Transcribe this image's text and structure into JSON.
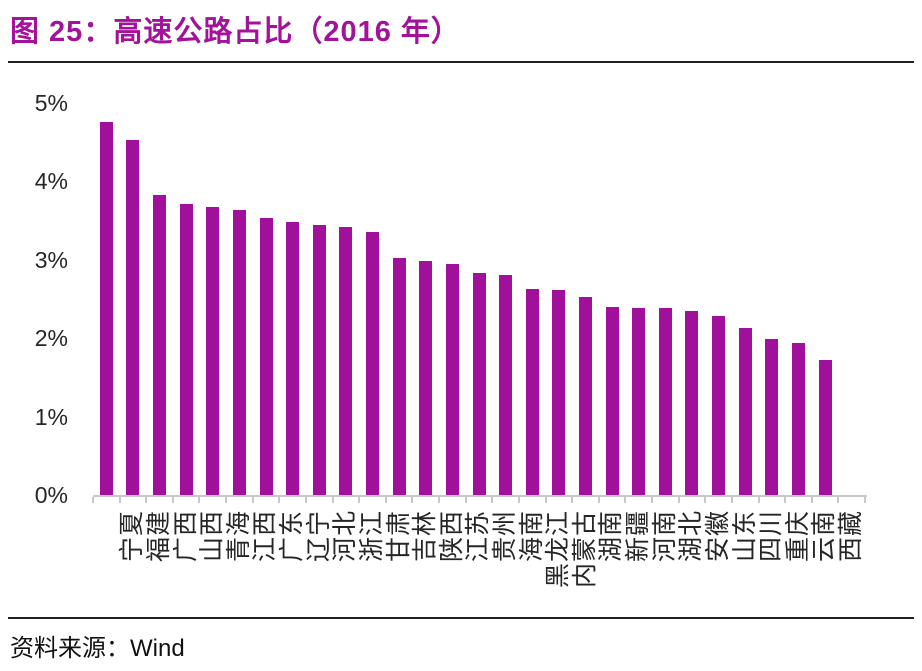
{
  "title": "图 25：高速公路占比（2016 年）",
  "source": {
    "label": "资料来源：",
    "value": "Wind"
  },
  "colors": {
    "bar": "#a0109a",
    "title": "#a2129a",
    "axis_line": "#c8c8c8",
    "text": "#1a1a1a"
  },
  "chart_data": {
    "type": "bar",
    "title": "高速公路占比（2016 年）",
    "unit": "%",
    "categories": [
      "宁夏",
      "福建",
      "广西",
      "山西",
      "青海",
      "江西",
      "广东",
      "辽宁",
      "河北",
      "浙江",
      "甘肃",
      "吉林",
      "陕西",
      "江苏",
      "贵州",
      "海南",
      "黑龙江",
      "内蒙古",
      "湖南",
      "新疆",
      "河南",
      "湖北",
      "安徽",
      "山东",
      "四川",
      "重庆",
      "云南",
      "西藏"
    ],
    "values": [
      4.76,
      4.53,
      3.83,
      3.71,
      3.67,
      3.64,
      3.53,
      3.48,
      3.45,
      3.42,
      3.36,
      3.02,
      2.99,
      2.95,
      2.83,
      2.8,
      2.63,
      2.61,
      2.53,
      2.4,
      2.39,
      2.39,
      2.35,
      2.28,
      2.13,
      1.99,
      1.94,
      1.72
    ],
    "xlabel": "",
    "ylabel": "",
    "ylim": [
      0,
      5
    ],
    "ytick_labels": [
      "0%",
      "1%",
      "2%",
      "3%",
      "4%",
      "5%"
    ],
    "grid": false,
    "legend": "none",
    "bar_color": "#a0109a",
    "category_label_rotation": -90,
    "trailing_empty_slots": 1
  }
}
